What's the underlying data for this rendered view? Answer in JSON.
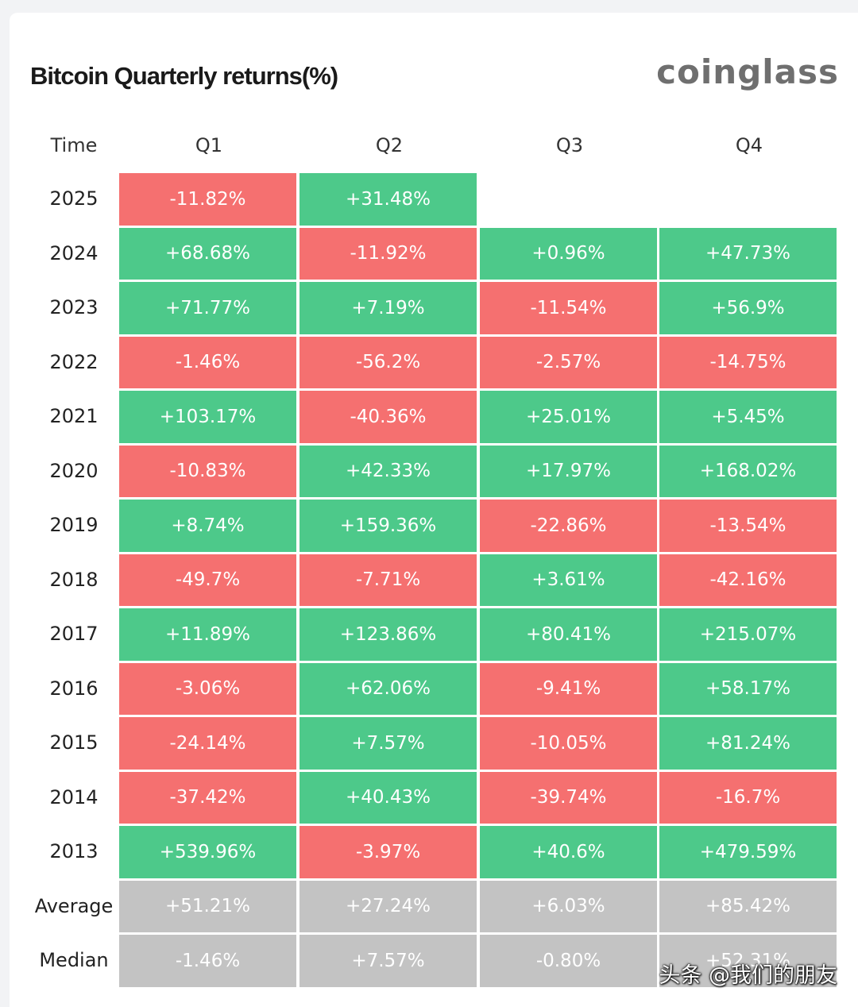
{
  "chart_data": {
    "type": "table",
    "title": "Bitcoin Quarterly returns(%)",
    "columns": [
      "Time",
      "Q1",
      "Q2",
      "Q3",
      "Q4"
    ],
    "rows": [
      {
        "label": "2025",
        "kind": "year",
        "values": [
          "-11.82%",
          "+31.48%",
          null,
          null
        ]
      },
      {
        "label": "2024",
        "kind": "year",
        "values": [
          "+68.68%",
          "-11.92%",
          "+0.96%",
          "+47.73%"
        ]
      },
      {
        "label": "2023",
        "kind": "year",
        "values": [
          "+71.77%",
          "+7.19%",
          "-11.54%",
          "+56.9%"
        ]
      },
      {
        "label": "2022",
        "kind": "year",
        "values": [
          "-1.46%",
          "-56.2%",
          "-2.57%",
          "-14.75%"
        ]
      },
      {
        "label": "2021",
        "kind": "year",
        "values": [
          "+103.17%",
          "-40.36%",
          "+25.01%",
          "+5.45%"
        ]
      },
      {
        "label": "2020",
        "kind": "year",
        "values": [
          "-10.83%",
          "+42.33%",
          "+17.97%",
          "+168.02%"
        ]
      },
      {
        "label": "2019",
        "kind": "year",
        "values": [
          "+8.74%",
          "+159.36%",
          "-22.86%",
          "-13.54%"
        ]
      },
      {
        "label": "2018",
        "kind": "year",
        "values": [
          "-49.7%",
          "-7.71%",
          "+3.61%",
          "-42.16%"
        ]
      },
      {
        "label": "2017",
        "kind": "year",
        "values": [
          "+11.89%",
          "+123.86%",
          "+80.41%",
          "+215.07%"
        ]
      },
      {
        "label": "2016",
        "kind": "year",
        "values": [
          "-3.06%",
          "+62.06%",
          "-9.41%",
          "+58.17%"
        ]
      },
      {
        "label": "2015",
        "kind": "year",
        "values": [
          "-24.14%",
          "+7.57%",
          "-10.05%",
          "+81.24%"
        ]
      },
      {
        "label": "2014",
        "kind": "year",
        "values": [
          "-37.42%",
          "+40.43%",
          "-39.74%",
          "-16.7%"
        ]
      },
      {
        "label": "2013",
        "kind": "year",
        "values": [
          "+539.96%",
          "-3.97%",
          "+40.6%",
          "+479.59%"
        ]
      },
      {
        "label": "Average",
        "kind": "summary",
        "values": [
          "+51.21%",
          "+27.24%",
          "+6.03%",
          "+85.42%"
        ]
      },
      {
        "label": "Median",
        "kind": "summary",
        "values": [
          "-1.46%",
          "+7.57%",
          "-0.80%",
          "+52.31%"
        ]
      }
    ]
  },
  "brand": {
    "logo_text": "coinglass"
  },
  "watermark": {
    "text": "头条 @我们的朋友"
  },
  "colors": {
    "positive": "#4dc98a",
    "negative": "#f57070",
    "summary": "#c3c3c3",
    "page_bg": "#f2f3f5",
    "card_bg": "#ffffff",
    "logo": "#6f6f6f"
  }
}
